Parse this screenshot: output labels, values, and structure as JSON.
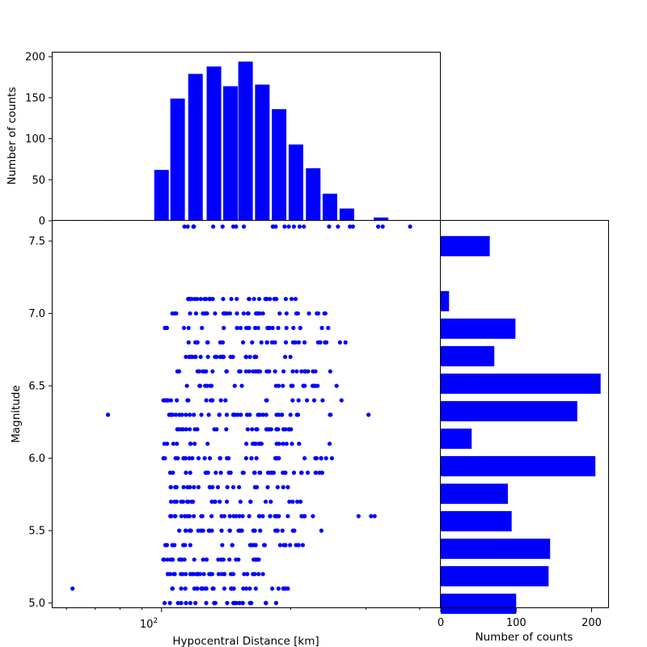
{
  "colors": {
    "marks": "#0000ff",
    "axes": "#000000",
    "background": "#ffffff"
  },
  "chart_data": [
    {
      "id": "top_histogram",
      "type": "bar",
      "title": "",
      "xlabel": "",
      "ylabel": "Number of counts",
      "xscale": "log",
      "xlim": [
        55.7,
        446
      ],
      "ylim": [
        0,
        205
      ],
      "yticks": [
        0,
        50,
        100,
        150,
        200
      ],
      "grid": false,
      "bin_centers": [
        62.5,
        74.0,
        100.0,
        109.0,
        120.0,
        132.5,
        144.8,
        157.0,
        171.8,
        188.0,
        205.8,
        225.8,
        247.0,
        270.5,
        296.5,
        325.0,
        355.5,
        389.5
      ],
      "values": [
        1,
        1,
        62,
        149,
        179,
        188,
        164,
        194,
        166,
        136,
        93,
        64,
        33,
        15,
        1,
        4,
        0,
        1
      ]
    },
    {
      "id": "scatter",
      "type": "scatter",
      "title": "",
      "xlabel": "Hypocentral Distance [km]",
      "ylabel": "Magnitude",
      "xscale": "log",
      "xlim": [
        55.7,
        446
      ],
      "ylim": [
        4.97,
        7.64
      ],
      "xtick_labels": [
        "10^2"
      ],
      "yticks": [
        5.0,
        5.5,
        6.0,
        6.5,
        7.0,
        7.5
      ],
      "grid": false,
      "magnitude_levels": [
        {
          "m": 5.0,
          "d_min": 100,
          "d_max": 186,
          "extra": [
            185
          ]
        },
        {
          "m": 5.1,
          "d_min": 104,
          "d_max": 208,
          "extra": [
            62
          ]
        },
        {
          "m": 5.2,
          "d_min": 101,
          "d_max": 180
        },
        {
          "m": 5.3,
          "d_min": 101,
          "d_max": 178
        },
        {
          "m": 5.4,
          "d_min": 101,
          "d_max": 215
        },
        {
          "m": 5.5,
          "d_min": 104,
          "d_max": 205,
          "extra": [
            236
          ]
        },
        {
          "m": 5.6,
          "d_min": 104,
          "d_max": 235,
          "extra": [
            288,
            308,
            314
          ]
        },
        {
          "m": 5.7,
          "d_min": 105,
          "d_max": 212
        },
        {
          "m": 5.8,
          "d_min": 105,
          "d_max": 198
        },
        {
          "m": 5.9,
          "d_min": 101,
          "d_max": 240
        },
        {
          "m": 6.0,
          "d_min": 101,
          "d_max": 266
        },
        {
          "m": 6.1,
          "d_min": 101,
          "d_max": 260
        },
        {
          "m": 6.2,
          "d_min": 107,
          "d_max": 208
        },
        {
          "m": 6.3,
          "d_min": 103,
          "d_max": 258,
          "extra": [
            75,
            304
          ]
        },
        {
          "m": 6.4,
          "d_min": 101,
          "d_max": 265
        },
        {
          "m": 6.5,
          "d_min": 104,
          "d_max": 265
        },
        {
          "m": 6.6,
          "d_min": 108,
          "d_max": 265
        },
        {
          "m": 6.7,
          "d_min": 112,
          "d_max": 222
        },
        {
          "m": 6.8,
          "d_min": 114,
          "d_max": 270
        },
        {
          "m": 6.9,
          "d_min": 101,
          "d_max": 250
        },
        {
          "m": 7.0,
          "d_min": 104,
          "d_max": 246
        },
        {
          "m": 7.1,
          "d_min": 115,
          "d_max": 208
        },
        {
          "m": 7.6,
          "d_min": 108,
          "d_max": 280,
          "extra": [
            320,
            328,
            380
          ]
        }
      ]
    },
    {
      "id": "right_histogram",
      "type": "bar",
      "orientation": "horizontal",
      "title": "",
      "xlabel": "Number of counts",
      "ylabel": "",
      "xlim": [
        0,
        222
      ],
      "xticks": [
        0,
        100,
        200
      ],
      "ylim": [
        4.97,
        7.64
      ],
      "grid": false,
      "bin_centers": [
        4.995,
        5.185,
        5.375,
        5.565,
        5.755,
        5.945,
        6.135,
        6.325,
        6.515,
        6.705,
        6.895,
        7.085,
        7.275,
        7.465
      ],
      "values": [
        100,
        143,
        145,
        94,
        89,
        205,
        41,
        181,
        212,
        71,
        99,
        11,
        0,
        65
      ]
    }
  ]
}
